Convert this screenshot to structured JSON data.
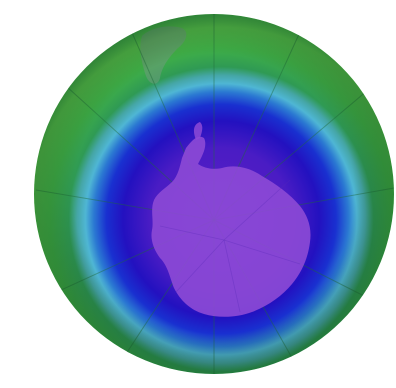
{
  "map": {
    "projection": "south-polar-orthographic",
    "region_center": "Antarctica",
    "colors": {
      "background": "#ffffff",
      "outer_green": "#2ea24a",
      "mid_green": "#41b347",
      "bright_green": "#55c34b",
      "cyan_ring": "#4fb6d4",
      "blue_ring": "#1f36d1",
      "deep_blue": "#1a10b8",
      "purple_core": "#6a2fd0",
      "continent": "#8d4ad6",
      "landmass_ghost": "#6f9b7e",
      "grid_line": "#1e6b3a"
    },
    "icons": {
      "globe": "globe-icon",
      "continent": "antarctica-shape",
      "landmass": "south-america-tip-shape"
    }
  }
}
